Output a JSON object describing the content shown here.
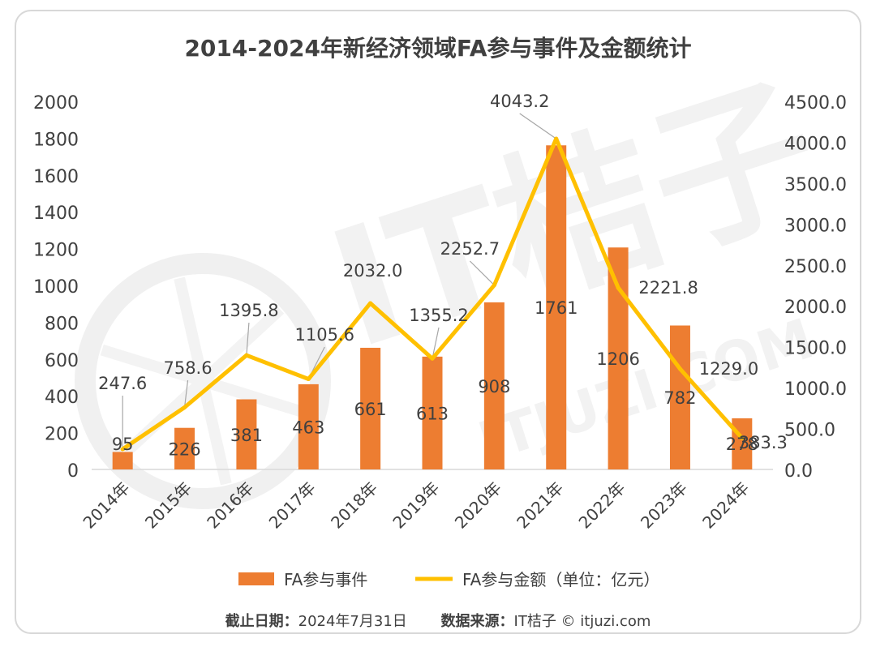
{
  "footer": {
    "date_label": "截止日期：",
    "date_value": "2024年7月31日",
    "source_label": "数据来源：",
    "source_value": "IT桔子 © itjuzi.com"
  },
  "watermark": {
    "brand": "IT桔子",
    "domain": "ITJUZI.COM"
  },
  "colors": {
    "bar": "#ED7D31",
    "line": "#FFC000",
    "text": "#404040",
    "axis": "#d9d9d9"
  },
  "chart_data": {
    "type": "bar",
    "title": "2014-2024年新经济领域FA参与事件及金额统计",
    "categories": [
      "2014年",
      "2015年",
      "2016年",
      "2017年",
      "2018年",
      "2019年",
      "2020年",
      "2021年",
      "2022年",
      "2023年",
      "2024年"
    ],
    "series": [
      {
        "name": "FA参与事件",
        "type": "bar",
        "axis": "left",
        "values": [
          95,
          226,
          381,
          463,
          661,
          613,
          908,
          1761,
          1206,
          782,
          278
        ]
      },
      {
        "name": "FA参与金额（单位：亿元）",
        "type": "line",
        "axis": "right",
        "values": [
          247.6,
          758.6,
          1395.8,
          1105.6,
          2032.0,
          1355.2,
          2252.7,
          4043.2,
          2221.8,
          1229.0,
          383.3
        ]
      }
    ],
    "bar_labels": [
      "95",
      "226",
      "381",
      "463",
      "661",
      "613",
      "908",
      "1761",
      "1206",
      "782",
      "278"
    ],
    "line_labels": [
      "247.6",
      "758.6",
      "1395.8",
      "1105.6",
      "2032.0",
      "1355.2",
      "2252.7",
      "4043.2",
      "2221.8",
      "1229.0",
      "383.3"
    ],
    "y_left": {
      "min": 0,
      "max": 2000,
      "ticks": [
        "0",
        "200",
        "400",
        "600",
        "800",
        "1000",
        "1200",
        "1400",
        "1600",
        "1800",
        "2000"
      ]
    },
    "y_right": {
      "min": 0,
      "max": 4500,
      "ticks": [
        "0.0",
        "500.0",
        "1000.0",
        "1500.0",
        "2000.0",
        "2500.0",
        "3000.0",
        "3500.0",
        "4000.0",
        "4500.0"
      ]
    },
    "legend_position": "bottom",
    "grid": false
  }
}
